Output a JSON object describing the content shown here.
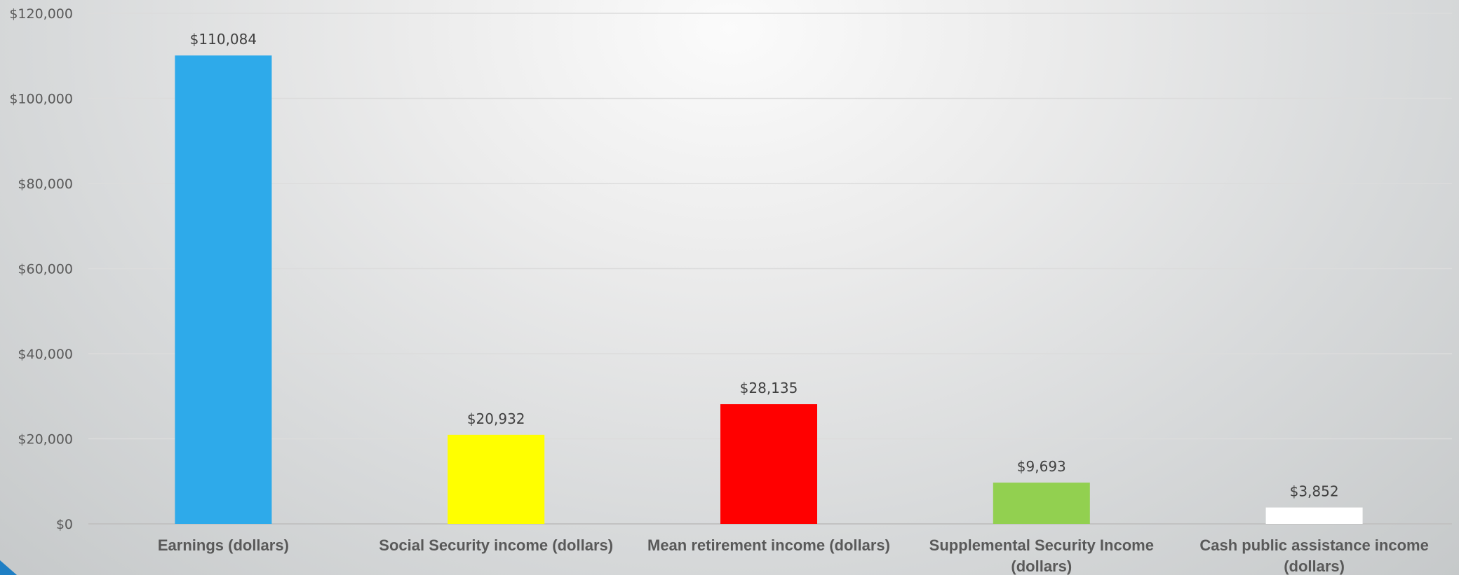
{
  "chart_data": {
    "type": "bar",
    "categories": [
      [
        "Earnings (dollars)"
      ],
      [
        "Social Security income (dollars)"
      ],
      [
        "Mean retirement income (dollars)"
      ],
      [
        "Supplemental Security Income",
        "(dollars)"
      ],
      [
        "Cash public assistance income",
        "(dollars)"
      ]
    ],
    "values": [
      110084,
      20932,
      28135,
      9693,
      3852
    ],
    "data_labels": [
      "$110,084",
      "$20,932",
      "$28,135",
      "$9,693",
      "$3,852"
    ],
    "bar_colors": [
      "#2eaaea",
      "#ffff00",
      "#ff0000",
      "#92d050",
      "#ffffff"
    ],
    "yticks": [
      0,
      20000,
      40000,
      60000,
      80000,
      100000,
      120000
    ],
    "ytick_labels": [
      "$0",
      "$20,000",
      "$40,000",
      "$60,000",
      "$80,000",
      "$100,000",
      "$120,000"
    ],
    "ylim": [
      0,
      120000
    ],
    "grid": true,
    "legend": "none",
    "title": "",
    "xlabel": "",
    "ylabel": ""
  }
}
